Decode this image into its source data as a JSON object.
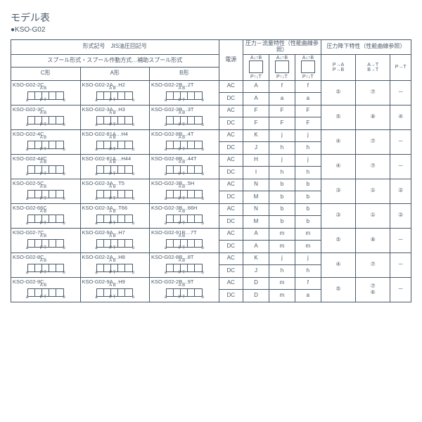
{
  "title": "モデル表",
  "subtitle": "●KSO-G02",
  "header": {
    "jis": "形式記号　JIS油圧回記号",
    "spool": "スプール形式・スプール作動方式…補助スプール形式",
    "c_type": "C形",
    "a_type": "A形",
    "b_type": "B形",
    "power": "電源",
    "pressure_flow": "圧力－流量特性（性能曲線参照）",
    "pressure_drop": "圧力降下特性（性能曲線参照）",
    "pa": "P→A",
    "pb": "P→B",
    "at": "A→T",
    "bt": "B→T",
    "pt": "P→T",
    "alb": "A↓↑B",
    "plt": "P↑↓T"
  },
  "rows": [
    {
      "c": "KSO-G02-2C",
      "a": "KSO-G02-2A…H2",
      "b": "KSO-G02-2B…2T",
      "ac": {
        "p": "A",
        "a": "f",
        "b": "f"
      },
      "dc": {
        "p": "A",
        "a": "a",
        "b": "a"
      },
      "d1": "⑤",
      "d2": "⑦",
      "d3": "－"
    },
    {
      "c": "KSO-G02-3C",
      "a": "KSO-G02-3A…H3",
      "b": "KSO-G02-3B…3T",
      "ac": {
        "p": "F",
        "a": "F",
        "b": "F"
      },
      "dc": {
        "p": "F",
        "a": "F",
        "b": "F"
      },
      "d1": "⑤",
      "d2": "⑧",
      "d3": "④"
    },
    {
      "c": "KSO-G02-4C",
      "a": "KSO-G02-81A…H4",
      "b": "KSO-G02-8B…4T",
      "ac": {
        "p": "K",
        "a": "j",
        "b": "j"
      },
      "dc": {
        "p": "J",
        "a": "h",
        "b": "h"
      },
      "d1": "④",
      "d2": "⑦",
      "d3": "－"
    },
    {
      "c": "KSO-G02-44C",
      "a": "KSO-G02-81A…H44",
      "b": "KSO-G02-8B…44T",
      "ac": {
        "p": "H",
        "a": "j",
        "b": "j"
      },
      "dc": {
        "p": "I",
        "a": "h",
        "b": "h"
      },
      "d1": "④",
      "d2": "⑦",
      "d3": "－"
    },
    {
      "c": "KSO-G02-5C",
      "a": "KSO-G02-3A…T5",
      "b": "KSO-G02-3B…5H",
      "ac": {
        "p": "N",
        "a": "b",
        "b": "b"
      },
      "dc": {
        "p": "M",
        "a": "b",
        "b": "b"
      },
      "d1": "③",
      "d2": "①",
      "d3": "②"
    },
    {
      "c": "KSO-G02-66C",
      "a": "KSO-G02-3A…T66",
      "b": "KSO-G02-3B…66H",
      "ac": {
        "p": "N",
        "a": "b",
        "b": "b"
      },
      "dc": {
        "p": "M",
        "a": "b",
        "b": "b"
      },
      "d1": "③",
      "d2": "①",
      "d3": "②"
    },
    {
      "c": "KSO-G02-7C",
      "a": "KSO-G02-9A…H7",
      "b": "KSO-G02-91B…7T",
      "ac": {
        "p": "A",
        "a": "m",
        "b": "m"
      },
      "dc": {
        "p": "A",
        "a": "m",
        "b": "m"
      },
      "d1": "⑤",
      "d2": "⑧",
      "d3": "－"
    },
    {
      "c": "KSO-G02-8C",
      "a": "KSO-G02-2A…H8",
      "b": "KSO-G02-8B…8T",
      "ac": {
        "p": "K",
        "a": "j",
        "b": "j"
      },
      "dc": {
        "p": "J",
        "a": "h",
        "b": "h"
      },
      "d1": "④",
      "d2": "⑦",
      "d3": "－"
    },
    {
      "c": "KSO-G02-9C",
      "a": "KSO-G02-9A…H9",
      "b": "KSO-G02-2B…9T",
      "ac": {
        "p": "D",
        "a": "m",
        "b": "f"
      },
      "dc": {
        "p": "D",
        "a": "m",
        "b": "a"
      },
      "d1": "⑤",
      "d2": "⑦⑥",
      "d3": "－"
    }
  ],
  "colors": {
    "line": "#4a5a6a",
    "bg": "#ffffff"
  }
}
